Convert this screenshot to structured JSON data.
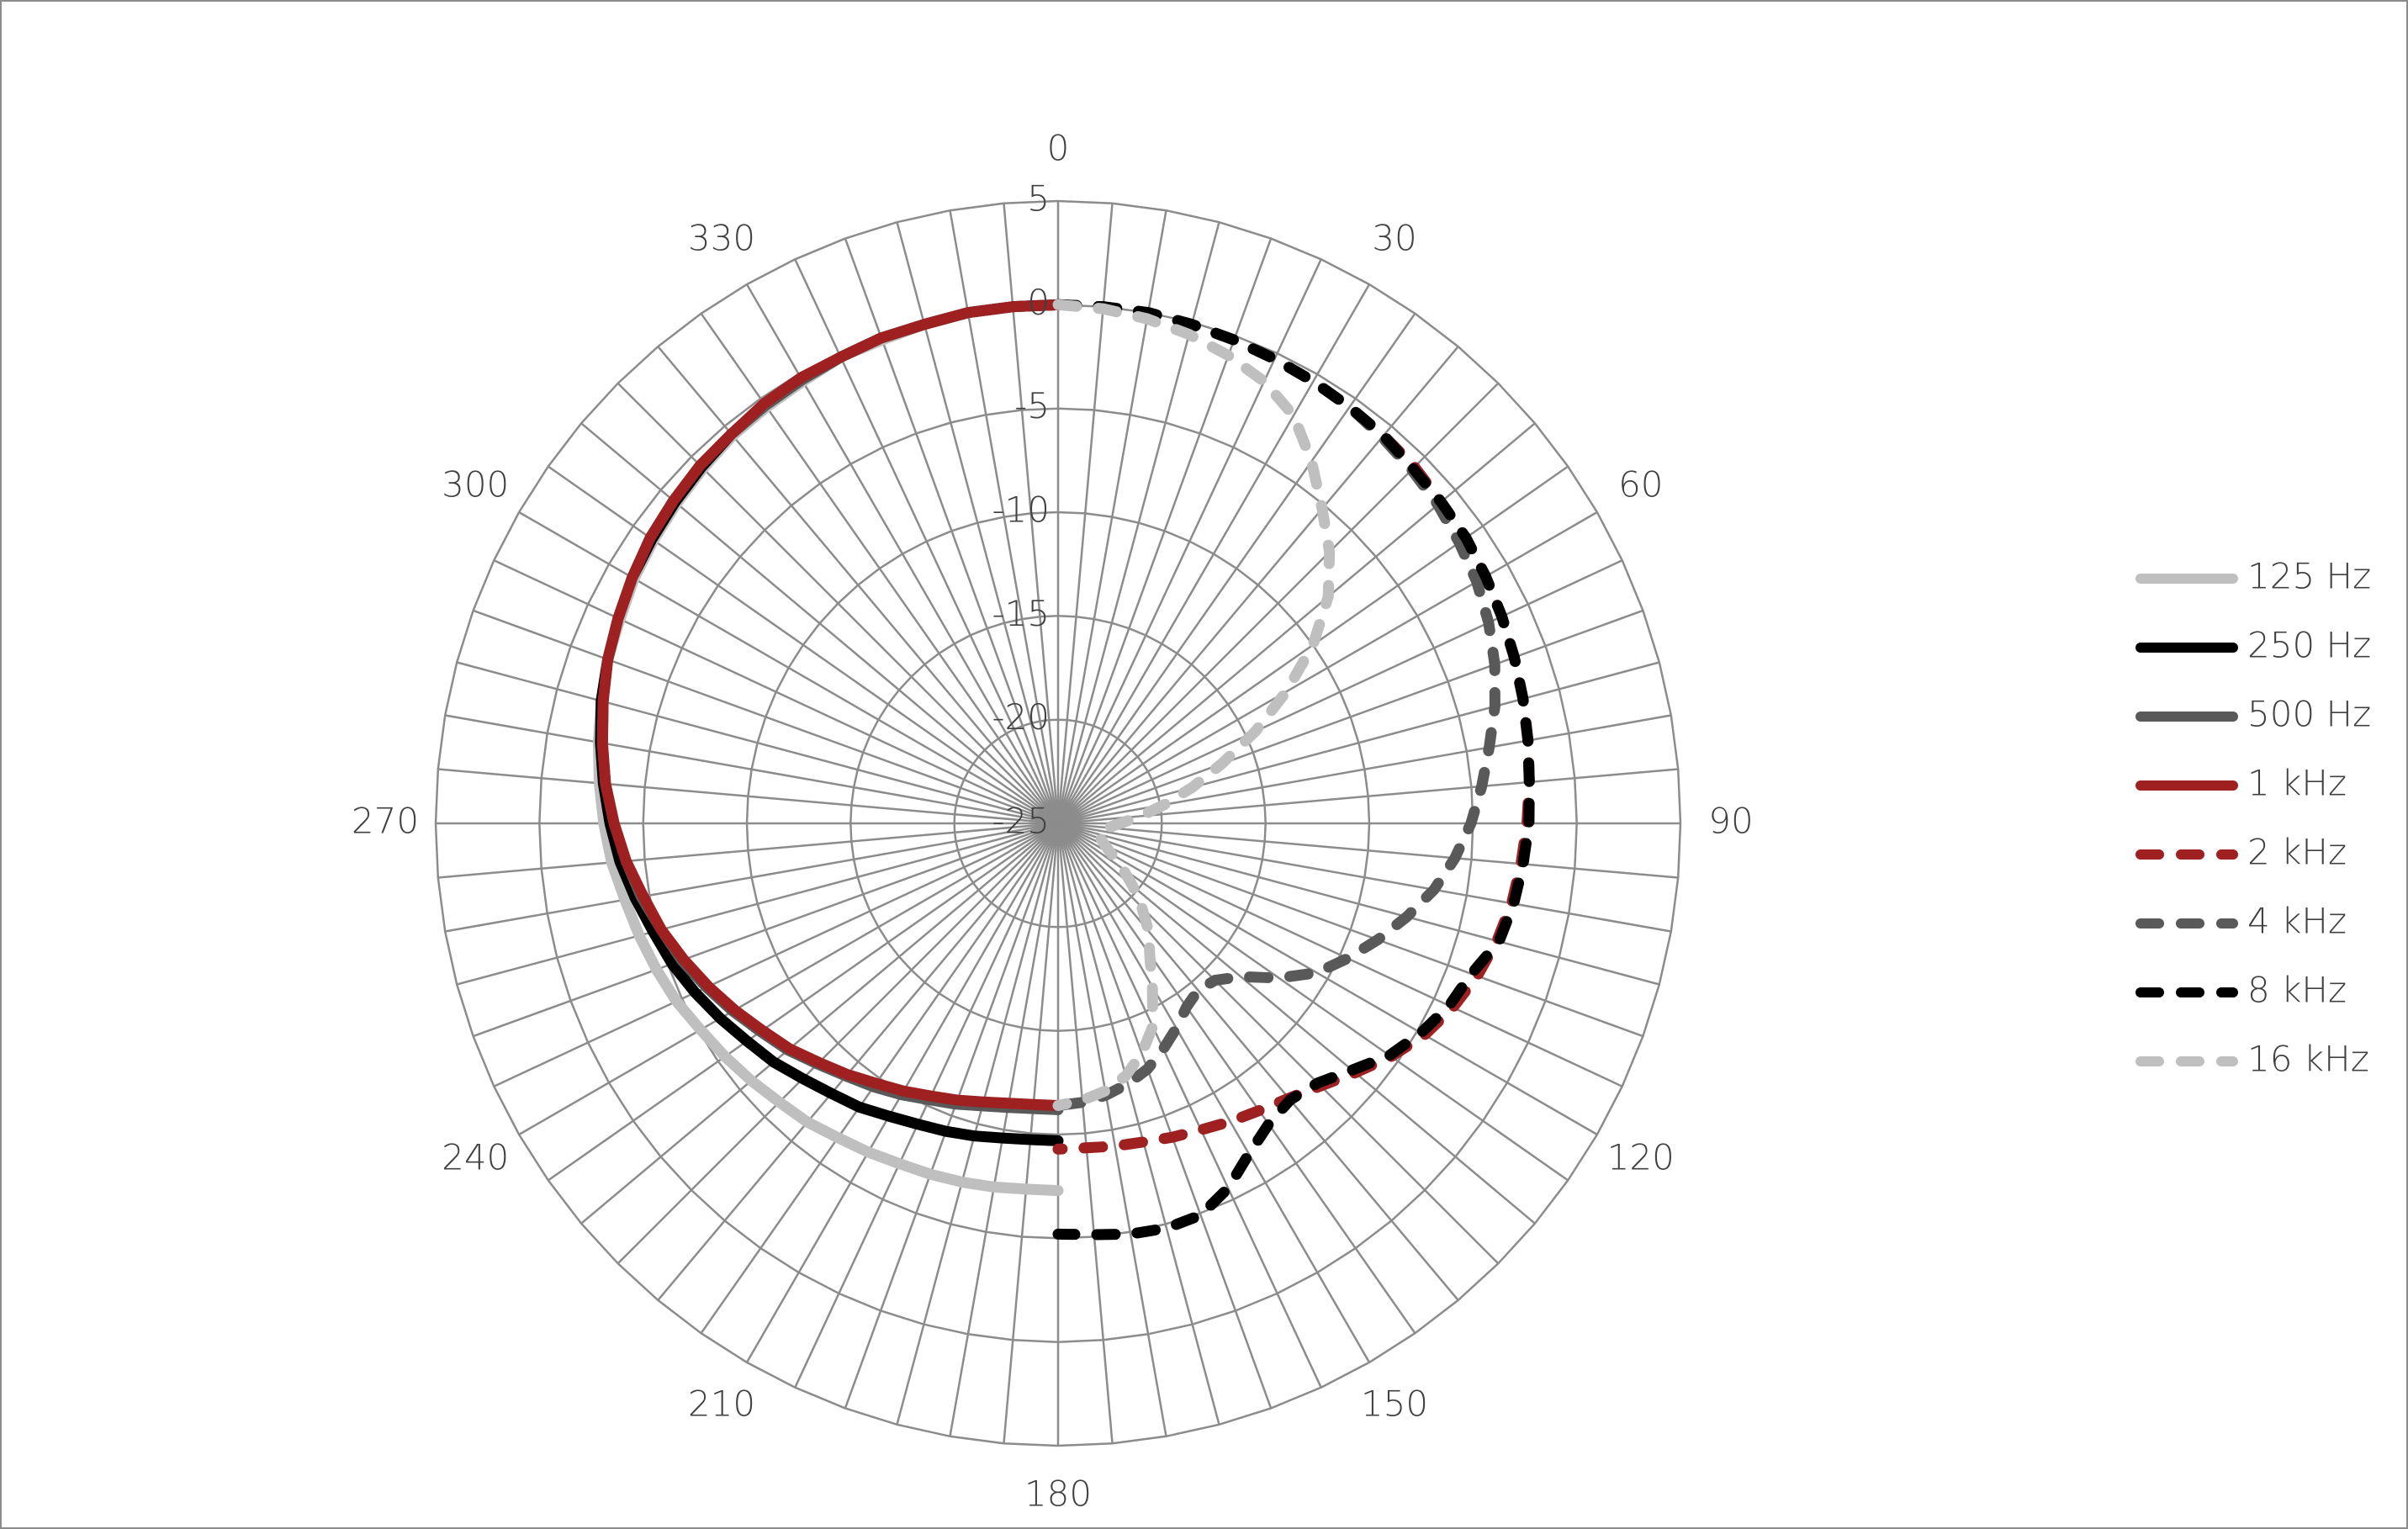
{
  "chart_data": {
    "type": "radar",
    "categories": [
      "0",
      null,
      null,
      null,
      null,
      null,
      "30",
      null,
      null,
      null,
      null,
      null,
      "60",
      null,
      null,
      null,
      null,
      null,
      "90",
      null,
      null,
      null,
      null,
      null,
      "120",
      null,
      null,
      null,
      null,
      null,
      "150",
      null,
      null,
      null,
      null,
      null,
      "180",
      null,
      null,
      null,
      null,
      null,
      "210",
      null,
      null,
      null,
      null,
      null,
      "240",
      null,
      null,
      null,
      null,
      null,
      "270",
      null,
      null,
      null,
      null,
      null,
      "300",
      null,
      null,
      null,
      null,
      null,
      "330",
      null,
      null,
      null,
      null,
      null
    ],
    "ylim": [
      -25,
      5
    ],
    "yticks": [
      5,
      0,
      -5,
      -10,
      -15,
      -20,
      -25
    ],
    "grid": true,
    "legend": "right",
    "series": [
      {
        "name": "125 Hz",
        "color": "#bfbfbf",
        "line_style": "solid",
        "values": [
          0,
          null,
          null,
          null,
          null,
          null,
          null,
          null,
          null,
          null,
          null,
          null,
          null,
          null,
          null,
          null,
          null,
          null,
          null,
          null,
          null,
          null,
          null,
          null,
          null,
          null,
          null,
          null,
          null,
          null,
          null,
          null,
          null,
          null,
          null,
          null,
          -7.3,
          -7.3,
          -7.2,
          -7.1,
          -7.0,
          -6.9,
          -6.7,
          -6.5,
          -6.2,
          -6.0,
          -5.7,
          -5.4,
          -5.1,
          -4.7,
          -4.4,
          -4.1,
          -3.8,
          -3.4,
          -3.1,
          -2.8,
          -2.5,
          -2.2,
          -1.9,
          -1.7,
          -1.4,
          -1.2,
          -1.0,
          -0.8,
          -0.6,
          -0.5,
          -0.4,
          -0.2,
          -0.2,
          -0.1,
          0,
          0
        ]
      },
      {
        "name": "250 Hz",
        "color": "#000000",
        "line_style": "solid",
        "values": [
          0,
          null,
          null,
          null,
          null,
          null,
          null,
          null,
          null,
          null,
          null,
          null,
          null,
          null,
          null,
          null,
          null,
          null,
          null,
          null,
          null,
          null,
          null,
          null,
          null,
          null,
          null,
          null,
          null,
          null,
          null,
          null,
          null,
          null,
          null,
          null,
          -9.7,
          -9.7,
          -9.6,
          -9.4,
          -9.2,
          -9.0,
          -8.7,
          -8.3,
          -8.0,
          -7.6,
          -7.1,
          -6.7,
          -6.2,
          -5.7,
          -5.2,
          -4.8,
          -4.3,
          -3.8,
          -3.4,
          -3.0,
          -2.6,
          -2.2,
          -1.9,
          -1.6,
          -1.3,
          -1.1,
          -0.9,
          -0.7,
          -0.5,
          -0.4,
          -0.3,
          -0.2,
          -0.1,
          -0.1,
          0,
          0
        ]
      },
      {
        "name": "500 Hz",
        "color": "#595959",
        "line_style": "solid",
        "values": [
          0,
          null,
          null,
          null,
          null,
          null,
          null,
          null,
          null,
          null,
          null,
          null,
          null,
          null,
          null,
          null,
          null,
          null,
          null,
          null,
          null,
          null,
          null,
          null,
          null,
          null,
          null,
          null,
          null,
          null,
          null,
          null,
          null,
          null,
          null,
          null,
          -11.2,
          -11.2,
          -11.1,
          -10.9,
          -10.6,
          -10.3,
          -9.9,
          -9.5,
          -9.1,
          -8.6,
          -8.0,
          -7.5,
          -6.9,
          -6.3,
          -5.7,
          -5.2,
          -4.6,
          -4.1,
          -3.6,
          -3.1,
          -2.7,
          -2.3,
          -1.9,
          -1.6,
          -1.3,
          -1.0,
          -0.8,
          -0.6,
          -0.5,
          -0.4,
          -0.3,
          -0.2,
          -0.1,
          -0.1,
          0,
          0
        ]
      },
      {
        "name": "1 kHz",
        "color": "#9e2020",
        "line_style": "solid",
        "values": [
          0,
          null,
          null,
          null,
          null,
          null,
          null,
          null,
          null,
          null,
          null,
          null,
          null,
          null,
          null,
          null,
          null,
          null,
          null,
          null,
          null,
          null,
          null,
          null,
          null,
          null,
          null,
          null,
          null,
          null,
          null,
          null,
          null,
          null,
          null,
          null,
          -11.4,
          -11.4,
          -11.3,
          -11.1,
          -10.8,
          -10.5,
          -10.1,
          -9.7,
          -9.2,
          -8.7,
          -8.1,
          -7.6,
          -7.0,
          -6.4,
          -5.8,
          -5.2,
          -4.7,
          -4.1,
          -3.6,
          -3.1,
          -2.7,
          -2.3,
          -1.9,
          -1.6,
          -1.3,
          -1.0,
          -0.8,
          -0.6,
          -0.5,
          -0.3,
          -0.2,
          -0.2,
          -0.1,
          -0.1,
          0,
          0
        ]
      },
      {
        "name": "2 kHz",
        "color": "#9e2020",
        "line_style": "dashed",
        "values": [
          0,
          0,
          0,
          -0.1,
          -0.2,
          -0.3,
          -0.4,
          -0.5,
          -0.6,
          -0.7,
          -0.9,
          -1.0,
          -1.2,
          -1.4,
          -1.6,
          -1.8,
          -2.0,
          -2.2,
          -2.4,
          -2.6,
          -2.8,
          -3.1,
          -3.5,
          -4.0,
          -4.6,
          -5.4,
          -6.3,
          -7.1,
          -7.7,
          -8.1,
          -8.4,
          -8.7,
          -8.9,
          -9.1,
          -9.2,
          -9.3,
          -9.3,
          null,
          null,
          null,
          null,
          null,
          null,
          null,
          null,
          null,
          null,
          null,
          null,
          null,
          null,
          null,
          null,
          null,
          null,
          null,
          null,
          null,
          null,
          null,
          null,
          null,
          null,
          null,
          null,
          null,
          null,
          null,
          null,
          null,
          null,
          null
        ]
      },
      {
        "name": "4 kHz",
        "color": "#595959",
        "line_style": "dashed",
        "values": [
          0,
          0,
          0,
          -0.1,
          -0.2,
          -0.3,
          -0.4,
          -0.5,
          -0.7,
          -0.9,
          -1.1,
          -1.4,
          -1.7,
          -2.1,
          -2.6,
          -3.2,
          -3.9,
          -4.5,
          -5.1,
          -5.8,
          -6.6,
          -7.6,
          -8.6,
          -9.6,
          -10.6,
          -12.0,
          -13.5,
          -14.3,
          -14.5,
          -14.2,
          -13.6,
          -13.0,
          -12.4,
          -12.0,
          -11.7,
          -11.5,
          -11.4,
          null,
          null,
          null,
          null,
          null,
          null,
          null,
          null,
          null,
          null,
          null,
          null,
          null,
          null,
          null,
          null,
          null,
          null,
          null,
          null,
          null,
          null,
          null,
          null,
          null,
          null,
          null,
          null,
          null,
          null,
          null,
          null,
          null,
          null,
          null
        ]
      },
      {
        "name": "8 kHz",
        "color": "#000000",
        "line_style": "dashed",
        "values": [
          0,
          0,
          0,
          -0.1,
          -0.2,
          -0.3,
          -0.4,
          -0.5,
          -0.6,
          -0.8,
          -0.9,
          -1.0,
          -1.2,
          -1.4,
          -1.6,
          -1.8,
          -2.0,
          -2.2,
          -2.3,
          -2.5,
          -2.7,
          -3.0,
          -3.8,
          -4.2,
          -4.8,
          -5.5,
          -6.5,
          -7.3,
          -7.6,
          -7.3,
          -6.6,
          -5.6,
          -4.9,
          -4.8,
          -4.9,
          -5.1,
          -5.2,
          null,
          null,
          null,
          null,
          null,
          null,
          null,
          null,
          null,
          null,
          null,
          null,
          null,
          null,
          null,
          null,
          null,
          null,
          null,
          null,
          null,
          null,
          null,
          null,
          null,
          null,
          null,
          null,
          null,
          null,
          null,
          null,
          null,
          null,
          null
        ]
      },
      {
        "name": "16 kHz",
        "color": "#bfbfbf",
        "line_style": "dashed",
        "values": [
          0,
          -0.1,
          -0.3,
          -0.6,
          -1.0,
          -1.5,
          -2.3,
          -3.7,
          -5.2,
          -6.5,
          -8.0,
          -10.0,
          -12.3,
          -14.5,
          -16.6,
          -18.3,
          -19.8,
          -21.0,
          -22.0,
          -22.6,
          -23.0,
          -23.0,
          -22.8,
          -22.5,
          -22.0,
          -21.2,
          -20.3,
          -19.3,
          -18.2,
          -17.3,
          -15.9,
          -14.2,
          -13.2,
          -12.4,
          -11.9,
          -11.6,
          -11.4,
          null,
          null,
          null,
          null,
          null,
          null,
          null,
          null,
          null,
          null,
          null,
          null,
          null,
          null,
          null,
          null,
          null,
          null,
          null,
          null,
          null,
          null,
          null,
          null,
          null,
          null,
          null,
          null,
          null,
          null,
          null,
          null,
          null,
          null,
          null
        ]
      }
    ]
  }
}
